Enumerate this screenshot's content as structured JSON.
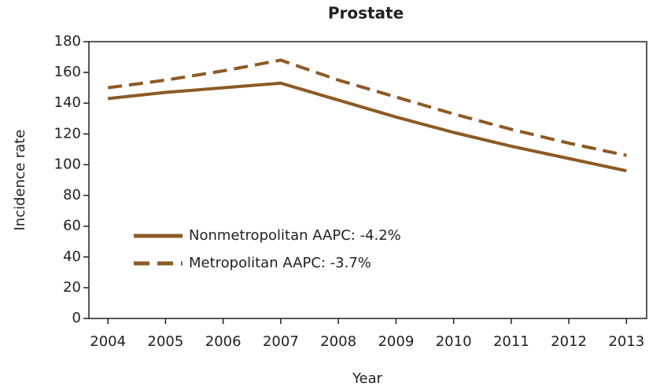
{
  "chart_data": {
    "type": "line",
    "title": "Prostate",
    "xlabel": "Year",
    "ylabel": "Incidence rate",
    "x": [
      2004,
      2005,
      2006,
      2007,
      2008,
      2009,
      2010,
      2011,
      2012,
      2013
    ],
    "series": [
      {
        "name": "Nonmetropolitan AAPC: -4.2%",
        "color": "#8c5a24",
        "style": "solid",
        "values": [
          143,
          147,
          150,
          153,
          142,
          131,
          121,
          112,
          104,
          96
        ]
      },
      {
        "name": "Metropolitan AAPC: -3.7%",
        "color": "#8c5a24",
        "style": "dashed",
        "values": [
          150,
          155,
          161,
          168,
          155,
          144,
          133,
          123,
          114,
          106
        ]
      }
    ],
    "xlim": [
      2003.67,
      2013.35
    ],
    "xticks": [
      2004,
      2005,
      2006,
      2007,
      2008,
      2009,
      2010,
      2011,
      2012,
      2013
    ],
    "ylim": [
      0,
      180
    ],
    "yticks": [
      0,
      20,
      40,
      60,
      80,
      100,
      120,
      140,
      160,
      180
    ],
    "grid": false
  }
}
